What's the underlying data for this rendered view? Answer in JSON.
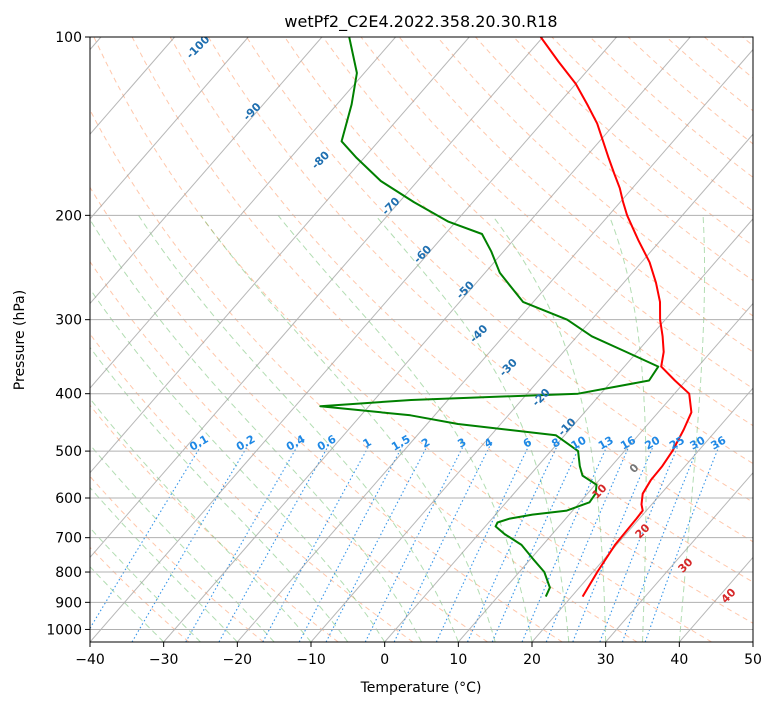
{
  "chart_data": {
    "type": "line",
    "subtype": "skew-t log-p sounding",
    "title": "wetPf2_C2E4.2022.358.20.30.R18",
    "xlabel": "Temperature (°C)",
    "ylabel": "Pressure (hPa)",
    "xlim": [
      -40,
      50
    ],
    "ylim": [
      1050,
      100
    ],
    "skew_deg_per_decade_log_p": 70,
    "x_ticks": [
      -40,
      -30,
      -20,
      -10,
      0,
      10,
      20,
      30,
      40,
      50
    ],
    "y_ticks": [
      100,
      200,
      300,
      400,
      500,
      600,
      700,
      800,
      900,
      1000
    ],
    "grid": true,
    "series": [
      {
        "name": "Temperature",
        "color": "#ff0000",
        "points": [
          [
            880,
            21.5
          ],
          [
            800,
            20.6
          ],
          [
            720,
            19.8
          ],
          [
            650,
            19.6
          ],
          [
            630,
            19.5
          ],
          [
            615,
            18.6
          ],
          [
            590,
            17.5
          ],
          [
            560,
            17.0
          ],
          [
            530,
            16.9
          ],
          [
            500,
            16.5
          ],
          [
            460,
            15.5
          ],
          [
            430,
            14.5
          ],
          [
            400,
            12.0
          ],
          [
            380,
            8.5
          ],
          [
            360,
            5.0
          ],
          [
            340,
            3.6
          ],
          [
            320,
            1.6
          ],
          [
            300,
            -0.7
          ],
          [
            280,
            -2.8
          ],
          [
            260,
            -5.6
          ],
          [
            240,
            -8.9
          ],
          [
            220,
            -13.1
          ],
          [
            200,
            -17.5
          ],
          [
            190,
            -19.6
          ],
          [
            180,
            -21.7
          ],
          [
            170,
            -24.2
          ],
          [
            160,
            -26.8
          ],
          [
            150,
            -29.5
          ],
          [
            140,
            -32.4
          ],
          [
            130,
            -36.0
          ],
          [
            120,
            -40.0
          ],
          [
            110,
            -45.0
          ],
          [
            100,
            -50.3
          ]
        ]
      },
      {
        "name": "Dewpoint",
        "color": "#008000",
        "points": [
          [
            880,
            16.5
          ],
          [
            850,
            16.0
          ],
          [
            800,
            13.4
          ],
          [
            760,
            10.3
          ],
          [
            720,
            7.1
          ],
          [
            690,
            3.5
          ],
          [
            670,
            1.4
          ],
          [
            660,
            1.2
          ],
          [
            650,
            2.4
          ],
          [
            640,
            5.0
          ],
          [
            630,
            9.2
          ],
          [
            610,
            11.3
          ],
          [
            590,
            11.1
          ],
          [
            570,
            10.2
          ],
          [
            550,
            7.2
          ],
          [
            530,
            5.7
          ],
          [
            500,
            3.7
          ],
          [
            470,
            -1.2
          ],
          [
            450,
            -15.8
          ],
          [
            435,
            -23.3
          ],
          [
            420,
            -36.6
          ],
          [
            410,
            -25.0
          ],
          [
            400,
            -3.1
          ],
          [
            380,
            5.0
          ],
          [
            360,
            4.6
          ],
          [
            340,
            -1.5
          ],
          [
            320,
            -8.0
          ],
          [
            300,
            -13.3
          ],
          [
            280,
            -21.4
          ],
          [
            250,
            -28.0
          ],
          [
            230,
            -31.7
          ],
          [
            215,
            -35.0
          ],
          [
            205,
            -41.0
          ],
          [
            190,
            -48.0
          ],
          [
            175,
            -55.0
          ],
          [
            160,
            -61.0
          ],
          [
            150,
            -65.0
          ],
          [
            130,
            -68.0
          ],
          [
            115,
            -71.0
          ],
          [
            100,
            -76.3
          ]
        ]
      }
    ],
    "overlays": {
      "dry_adiabats": {
        "color": "#ff9966",
        "labels": [
          "-100",
          "-90",
          "-80",
          "-70",
          "-60",
          "-50",
          "-40",
          "-30",
          "-20",
          "-10",
          "0",
          "10",
          "20",
          "30",
          "40"
        ]
      },
      "moist_adiabats": {
        "color": "#66bb66"
      },
      "mixing_ratio_lines": {
        "color": "#1e88e5",
        "labels": [
          "0.1",
          "0.2",
          "0.4",
          "0.6",
          "1",
          "1.5",
          "2",
          "3",
          "4",
          "6",
          "8",
          "10",
          "13",
          "16",
          "20",
          "25",
          "30",
          "36"
        ]
      },
      "isotherms": {
        "color": "#999999"
      }
    }
  }
}
